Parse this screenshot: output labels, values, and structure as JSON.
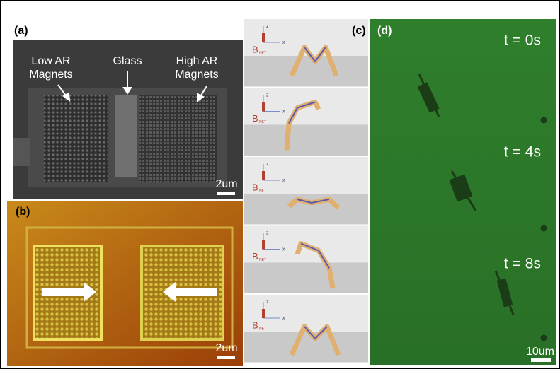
{
  "panels": {
    "a": {
      "label": "(a)",
      "low": [
        "Low AR",
        "Magnets"
      ],
      "glass": "Glass",
      "high": [
        "High AR",
        "Magnets"
      ],
      "scale": "2um"
    },
    "b": {
      "label": "(b)",
      "scale": "2um"
    },
    "c": {
      "label": "(c)",
      "frames": [
        {
          "z": "z",
          "x": "x",
          "field": "B",
          "sub": "NET"
        },
        {
          "z": "z",
          "x": "x",
          "field": "B",
          "sub": "NET"
        },
        {
          "z": "z",
          "x": "x",
          "field": "B",
          "sub": "NET"
        },
        {
          "z": "z",
          "x": "x",
          "field": "B",
          "sub": "NET"
        },
        {
          "z": "z",
          "x": "x",
          "field": "B",
          "sub": "NET"
        }
      ]
    },
    "d": {
      "label": "(d)",
      "times": [
        "t = 0s",
        "t = 4s",
        "t = 8s"
      ],
      "scale": "10um"
    }
  }
}
